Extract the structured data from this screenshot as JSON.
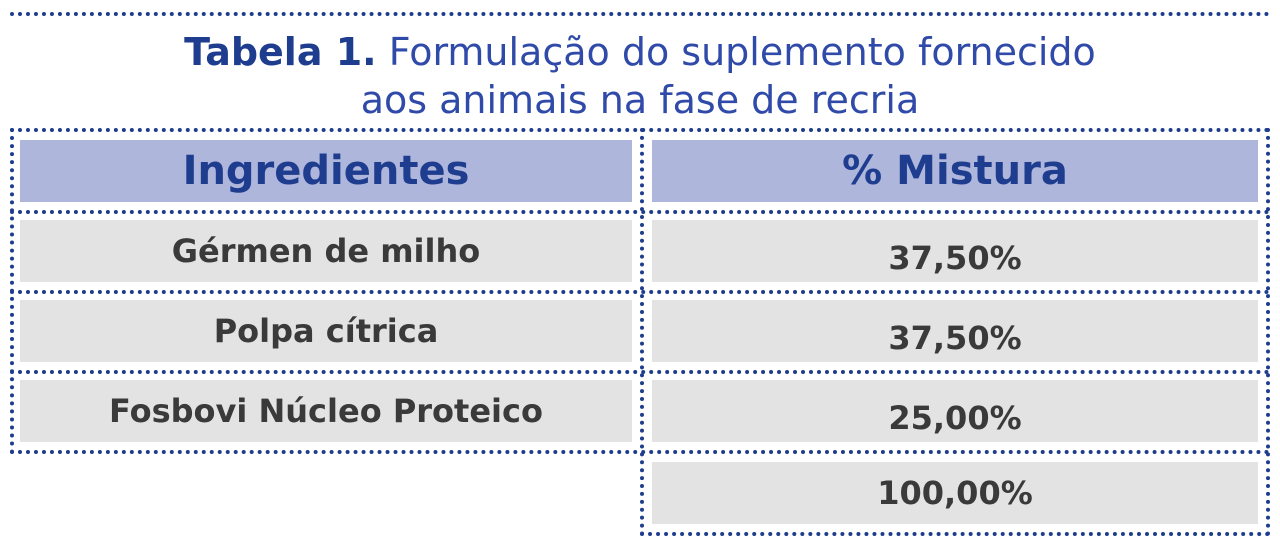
{
  "caption": {
    "label": "Tabela 1.",
    "line1": "Formulação do suplemento fornecido",
    "line2": "aos animais na fase de recria"
  },
  "table": {
    "headers": [
      "Ingredientes",
      "% Mistura"
    ],
    "rows": [
      {
        "ingredient": "Gérmen de milho",
        "percent": "37,50%"
      },
      {
        "ingredient": "Polpa cítrica",
        "percent": "37,50%"
      },
      {
        "ingredient": "Fosbovi Núcleo Proteico",
        "percent": "25,00%"
      }
    ],
    "total": "100,00%"
  },
  "colors": {
    "accent": "#1f3d8f",
    "header_fill": "#aeb6dc",
    "row_fill": "#e3e3e3",
    "body_text": "#3a3a3a"
  }
}
